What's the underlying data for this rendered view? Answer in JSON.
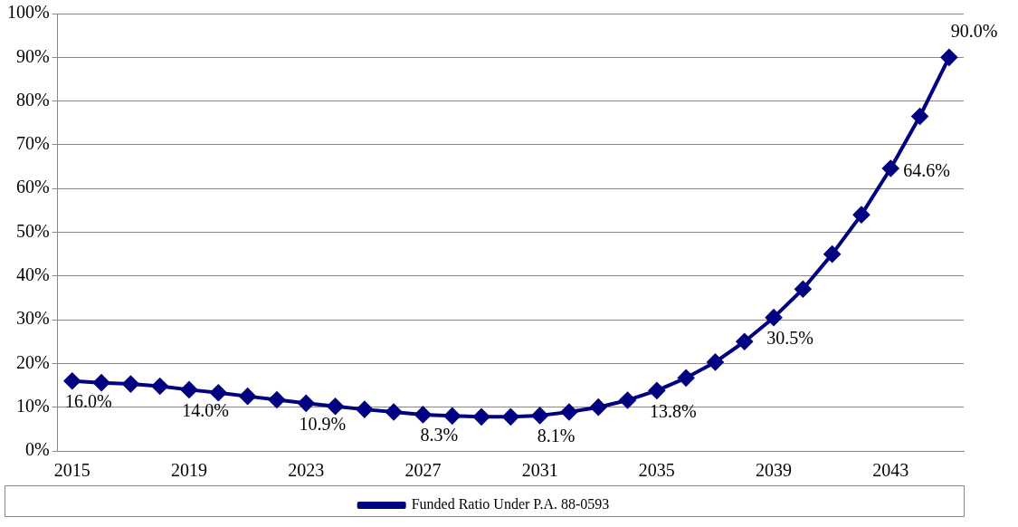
{
  "chart_data": {
    "type": "line",
    "categories": [
      "2015",
      null,
      null,
      null,
      "2019",
      null,
      null,
      null,
      "2023",
      null,
      null,
      null,
      "2027",
      null,
      null,
      null,
      "2031",
      null,
      null,
      null,
      "2035",
      null,
      null,
      null,
      "2039",
      null,
      null,
      null,
      "2043",
      null,
      null
    ],
    "series": [
      {
        "name": "Funded Ratio Under P.A. 88-0593",
        "color": "#000080",
        "values": [
          16.0,
          15.6,
          15.3,
          14.8,
          14.0,
          13.3,
          12.5,
          11.7,
          10.9,
          10.2,
          9.5,
          8.9,
          8.3,
          8.0,
          7.8,
          7.8,
          8.1,
          8.9,
          10.0,
          11.6,
          13.8,
          16.7,
          20.3,
          25.0,
          30.5,
          37.0,
          45.0,
          54.0,
          64.6,
          76.5,
          90.0
        ],
        "value_labels": [
          "16.0%",
          null,
          null,
          null,
          "14.0%",
          null,
          null,
          null,
          "10.9%",
          null,
          null,
          null,
          "8.3%",
          null,
          null,
          null,
          "8.1%",
          null,
          null,
          null,
          "13.8%",
          null,
          null,
          null,
          "30.5%",
          null,
          null,
          null,
          "64.6%",
          null,
          "90.0%"
        ]
      }
    ],
    "ylim": [
      0,
      100
    ],
    "yticks": [
      {
        "value": 0,
        "label": "0%"
      },
      {
        "value": 10,
        "label": "10%"
      },
      {
        "value": 20,
        "label": "20%"
      },
      {
        "value": 30,
        "label": "30%"
      },
      {
        "value": 40,
        "label": "40%"
      },
      {
        "value": 50,
        "label": "50%"
      },
      {
        "value": 60,
        "label": "60%"
      },
      {
        "value": 70,
        "label": "70%"
      },
      {
        "value": 80,
        "label": "80%"
      },
      {
        "value": 90,
        "label": "90%"
      },
      {
        "value": 100,
        "label": "100%"
      }
    ],
    "grid": "y",
    "legend": "bottom",
    "marker": "diamond",
    "line_style": "solid"
  }
}
